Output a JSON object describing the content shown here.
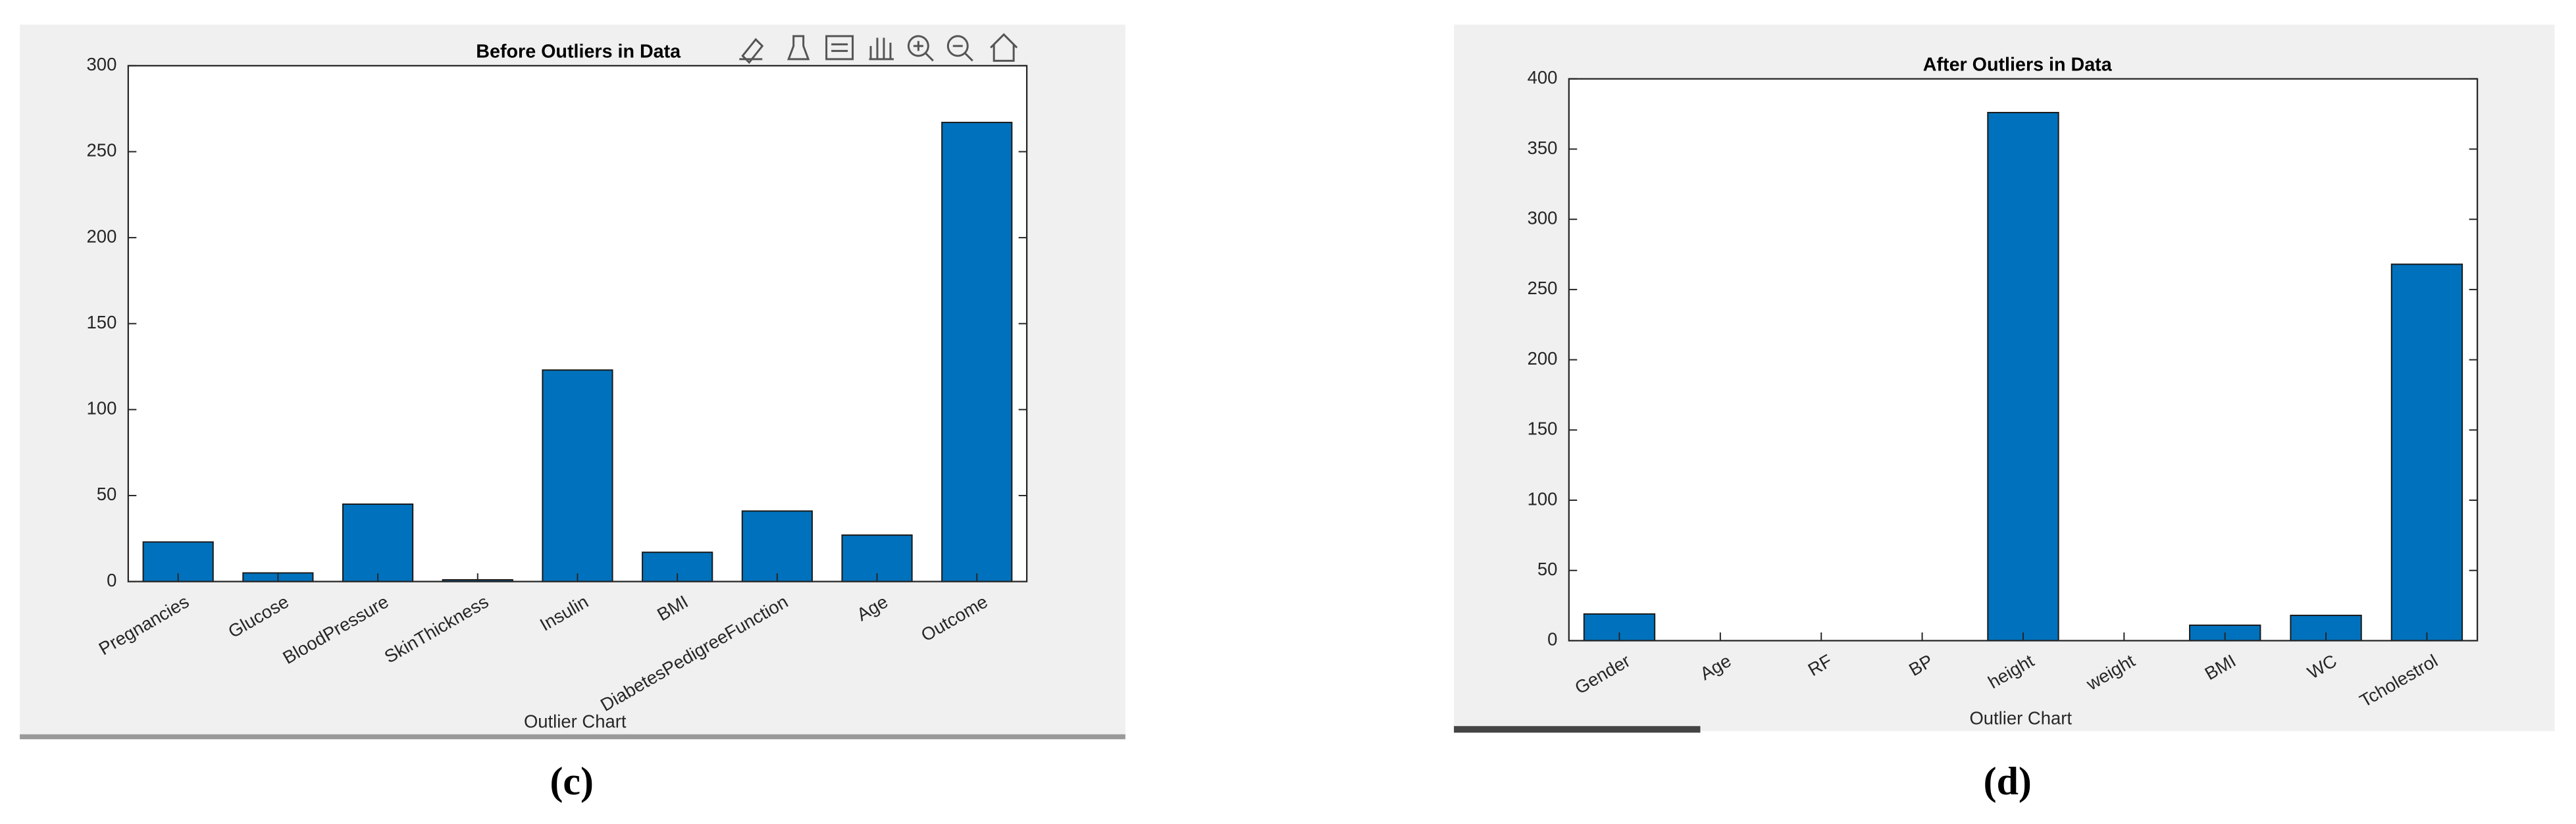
{
  "chart_data": [
    {
      "type": "bar",
      "title": "Before Outliers in Data",
      "x_label": "Outlier Chart",
      "categories": [
        "Pregnancies",
        "Glucose",
        "BloodPressure",
        "SkinThickness",
        "Insulin",
        "BMI",
        "DiabetesPedigreeFunction",
        "Age",
        "Outcome"
      ],
      "values": [
        23,
        5,
        45,
        1,
        123,
        17,
        41,
        27,
        267
      ],
      "color": "#0072bd",
      "ylim": [
        0,
        300
      ],
      "yticks": [
        0,
        50,
        100,
        150,
        200,
        250,
        300
      ],
      "grid": false
    },
    {
      "type": "bar",
      "title": "After Outliers in Data",
      "x_label": "Outlier Chart",
      "categories": [
        "Gender",
        "Age",
        "RF",
        "BP",
        "height",
        "weight",
        "BMI",
        "WC",
        "Tcholestrol"
      ],
      "values": [
        19,
        0,
        0,
        0,
        376,
        0,
        11,
        18,
        268
      ],
      "color": "#0072bd",
      "ylim": [
        0,
        400
      ],
      "yticks": [
        0,
        50,
        100,
        150,
        200,
        250,
        300,
        350,
        400
      ],
      "grid": false
    }
  ],
  "captions": [
    "(c)",
    "(d)"
  ]
}
